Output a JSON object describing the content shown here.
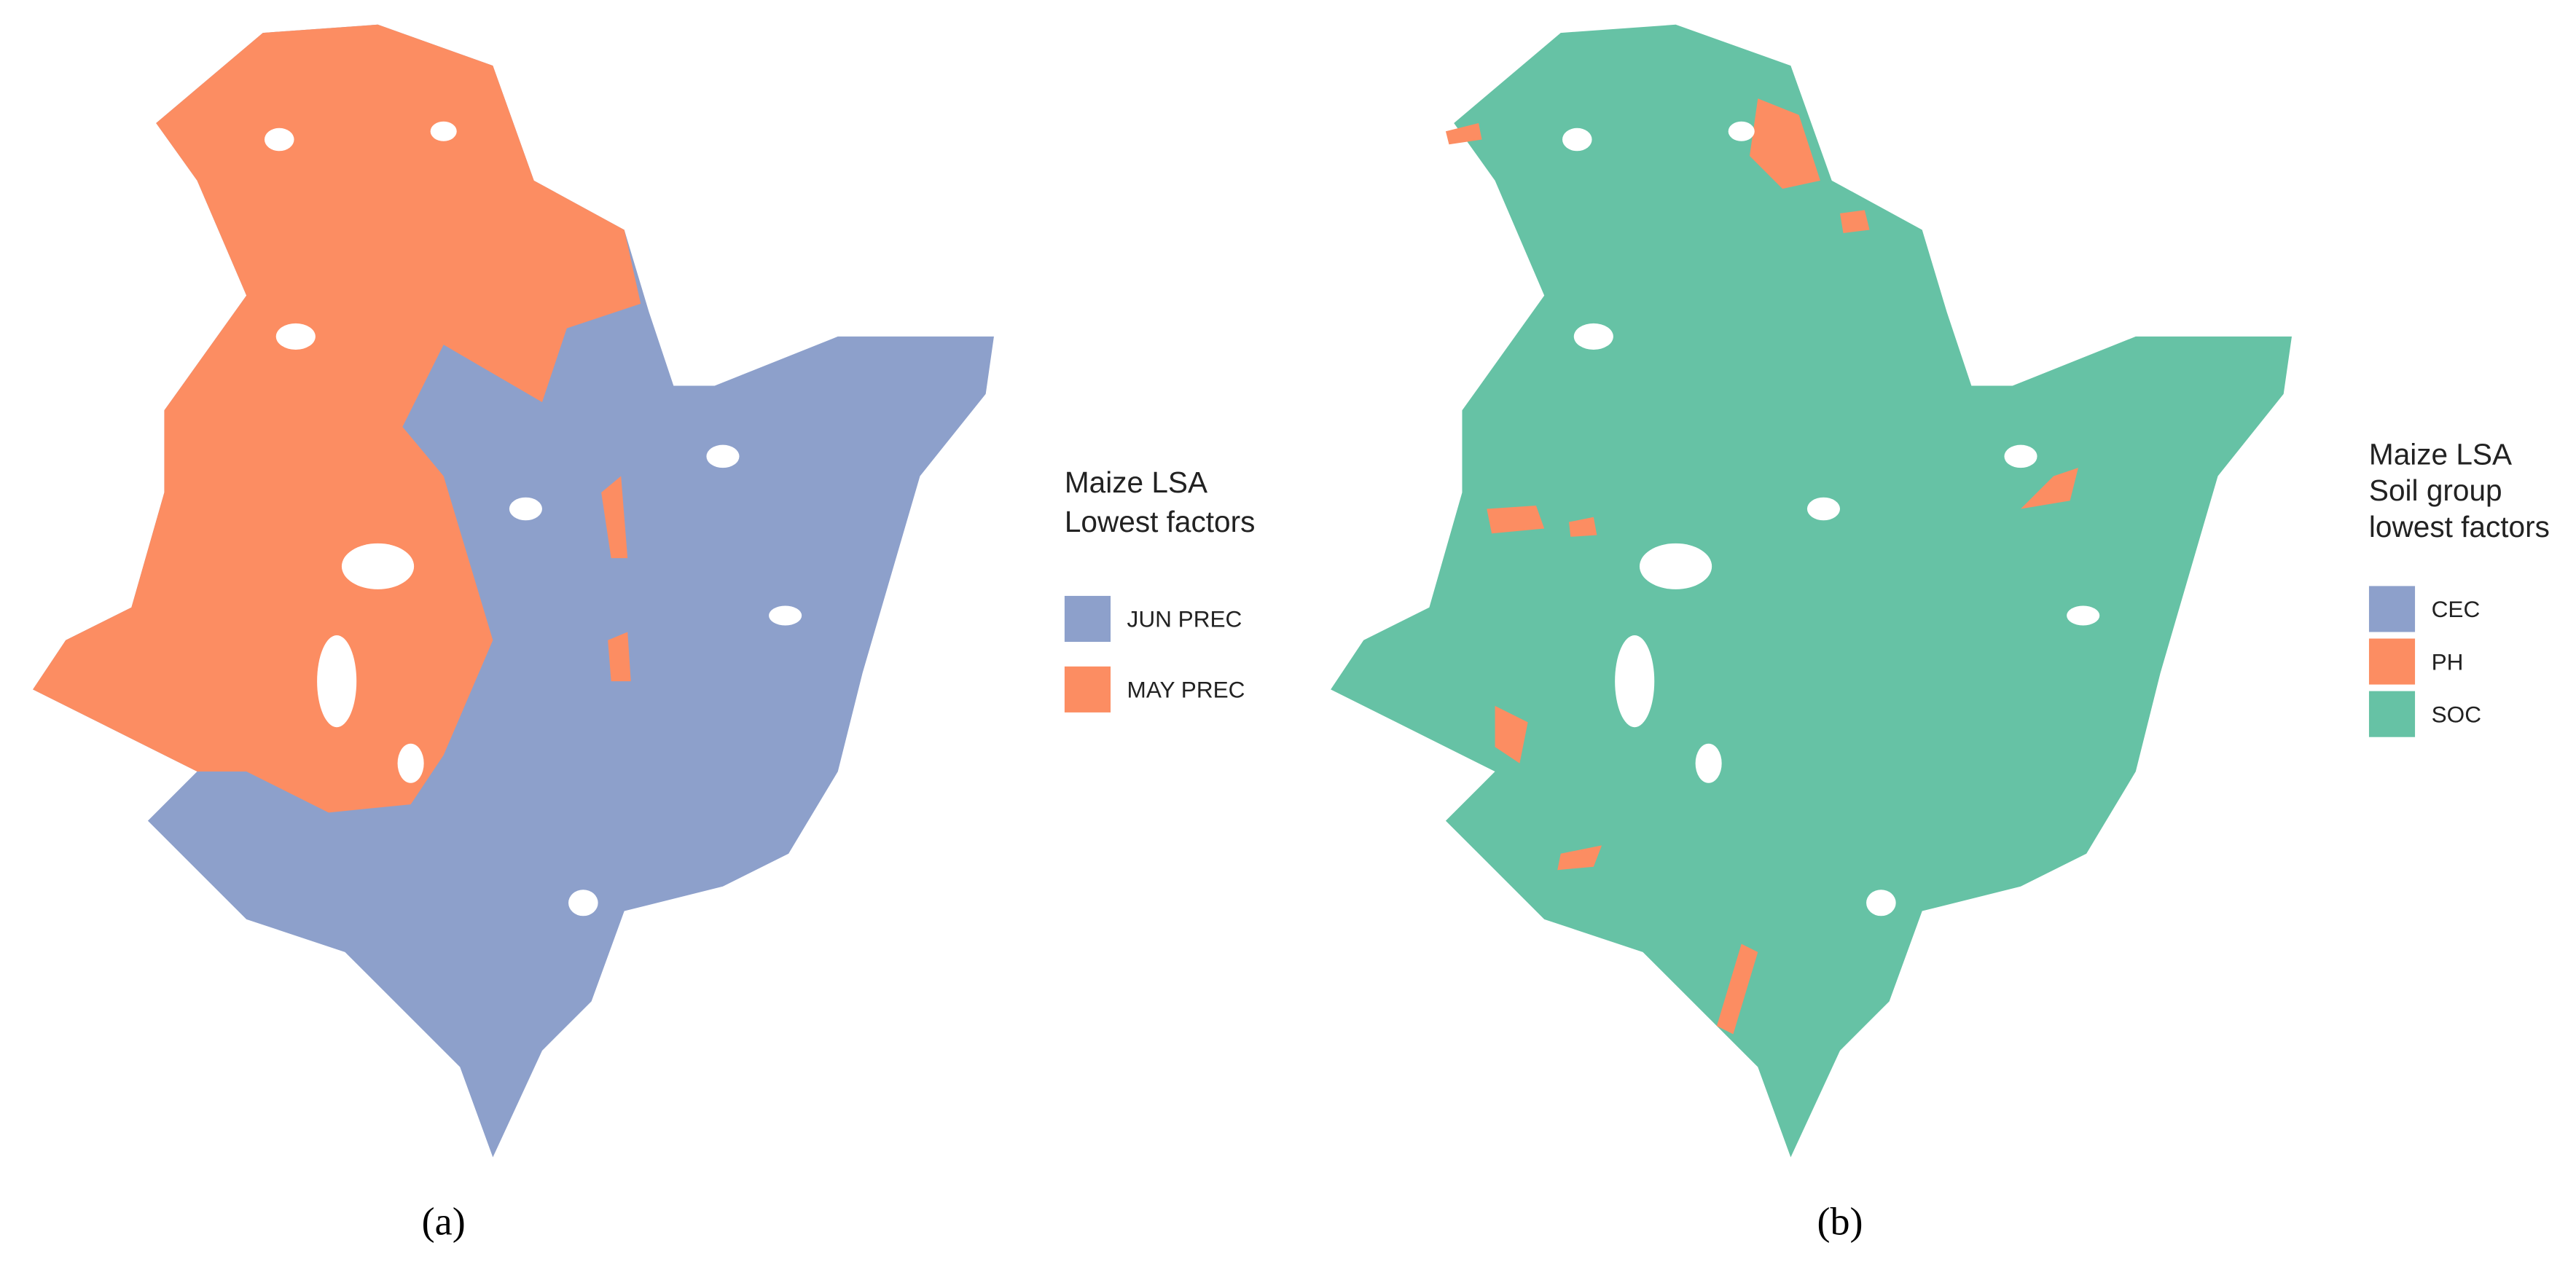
{
  "panels": [
    {
      "caption": "(a)",
      "legend": {
        "title": [
          "Maize LSA",
          "Lowest factors"
        ],
        "items": [
          {
            "label": "JUN PREC",
            "color": "#8da0cb"
          },
          {
            "label": "MAY PREC",
            "color": "#fc8d62"
          }
        ]
      }
    },
    {
      "caption": "(b)",
      "legend": {
        "title": [
          "Maize LSA",
          "Soil group",
          "lowest factors"
        ],
        "items": [
          {
            "label": "CEC",
            "color": "#8da0cb"
          },
          {
            "label": "PH",
            "color": "#fc8d62"
          },
          {
            "label": "SOC",
            "color": "#66c2a5"
          }
        ]
      }
    }
  ]
}
